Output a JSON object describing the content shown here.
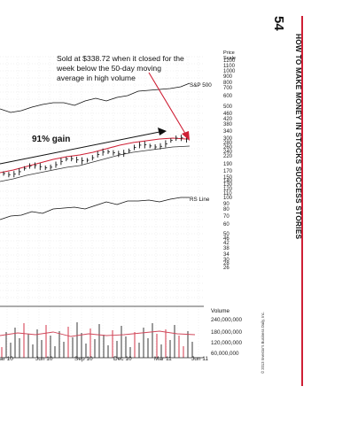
{
  "annotation": "Sold at $338.72 when it closed for the week below the 50-day moving average in high volume",
  "gain_label": "91% gain",
  "price_scale_header": "Price Scale",
  "price_ticks": [
    "1200",
    "1100",
    "1000",
    "900",
    "800",
    "700",
    "600",
    "500",
    "460",
    "420",
    "380",
    "340",
    "300",
    "280",
    "260",
    "240",
    "220",
    "190",
    "170",
    "150",
    "140",
    "130",
    "120",
    "110",
    "100",
    "90",
    "80",
    "70",
    "60",
    "50",
    "46",
    "42",
    "38",
    "34",
    "30",
    "28",
    "26"
  ],
  "series_labels": {
    "sp500": "S&P 500",
    "rs": "RS Line"
  },
  "volume_header": "Volume",
  "volume_ticks": [
    "240,000,000",
    "180,000,000",
    "120,000,000",
    "60,000,000"
  ],
  "date_labels": [
    "ar 10",
    "Jun 10",
    "Sep 10",
    "Dec 10",
    "Mar 11",
    "Jun 11"
  ],
  "copyright": "© 2013 Investor's Business Daily, Inc.",
  "page_number": "54",
  "running_head": "HOW TO MAKE MONEY IN STOCKS SUCCESS STORIES",
  "colors": {
    "price": "#111111",
    "moving_avg": "#d0485b",
    "volume_up": "#222222",
    "volume_down": "#cf1f35",
    "rule": "#cf1f35",
    "grid": "#d8d8d8"
  }
}
